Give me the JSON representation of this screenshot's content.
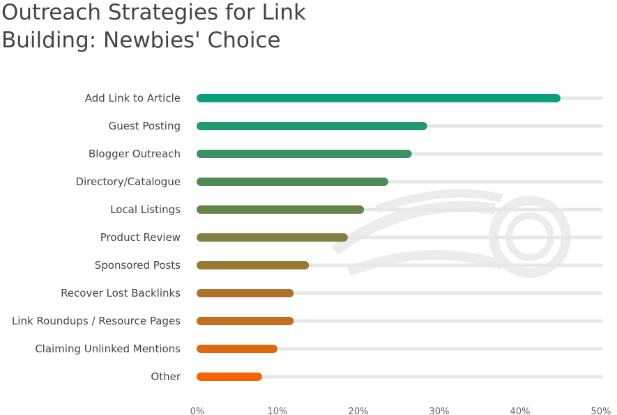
{
  "chart_data": {
    "type": "bar",
    "orientation": "horizontal",
    "title": "Outreach Strategies for Link Building: Newbies' Choice",
    "categories": [
      "Add Link to Article",
      "Guest Posting",
      "Blogger Outreach",
      "Directory/Catalogue",
      "Local Listings",
      "Product Review",
      "Sponsored Posts",
      "Recover Lost Backlinks",
      "Link Roundups / Resource Pages",
      "Claiming Unlinked Mentions",
      "Other"
    ],
    "values": [
      45,
      28.5,
      26.6,
      23.7,
      20.7,
      18.7,
      13.9,
      12,
      12,
      10,
      8.1
    ],
    "colors": [
      "#08a078",
      "#1f9a6c",
      "#3b9260",
      "#4f8a55",
      "#648449",
      "#7f8240",
      "#977a35",
      "#ad712b",
      "#c46e1e",
      "#dc6910",
      "#f46402"
    ],
    "track_color": "#e6e7e8",
    "xlim": [
      0,
      50
    ],
    "xticks": [
      "0%",
      "10%",
      "20%",
      "30%",
      "40%",
      "50%"
    ],
    "xlabel": "",
    "ylabel": "",
    "grid": false,
    "legend": "none"
  }
}
